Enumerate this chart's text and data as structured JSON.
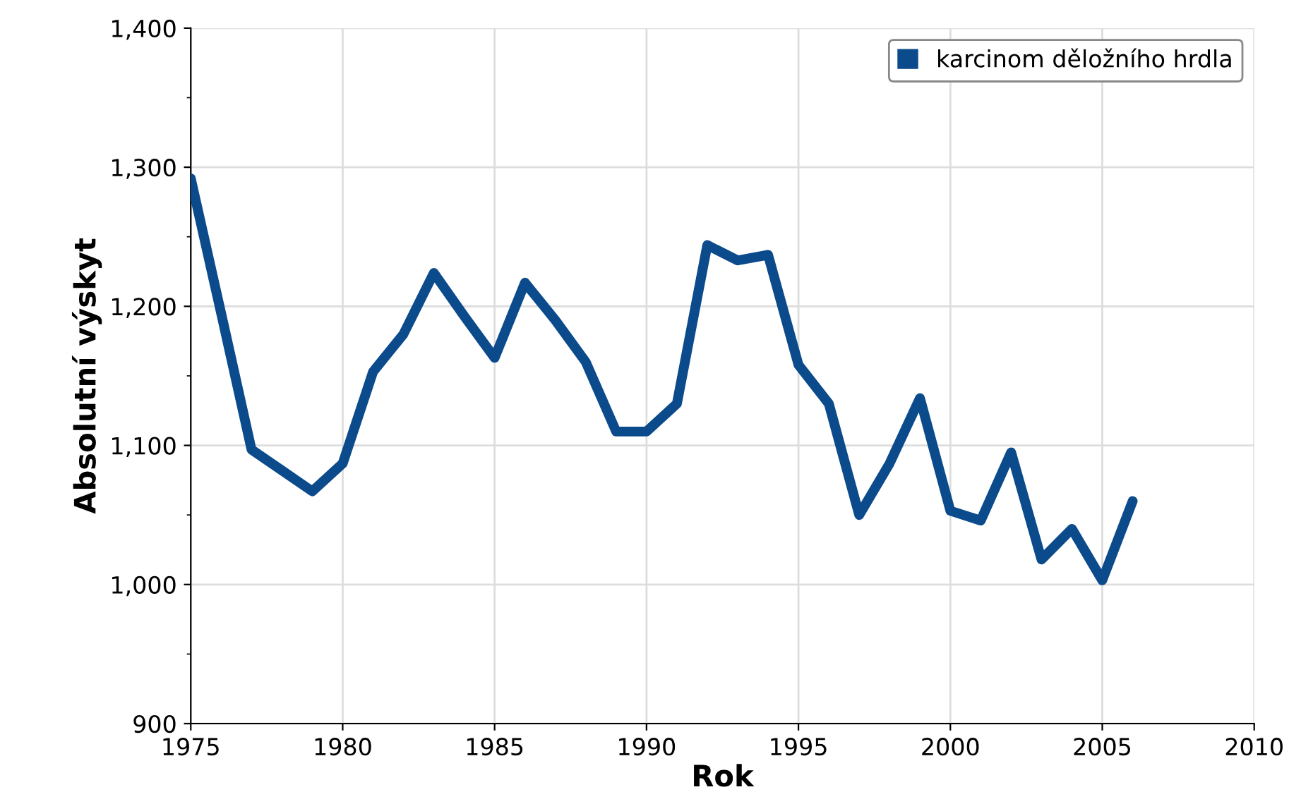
{
  "chart_data": {
    "type": "line",
    "xlabel": "Rok",
    "ylabel": "Absolutní výskyt",
    "x": [
      1975,
      1976,
      1977,
      1978,
      1979,
      1980,
      1981,
      1982,
      1983,
      1984,
      1985,
      1986,
      1987,
      1988,
      1989,
      1990,
      1991,
      1992,
      1993,
      1994,
      1995,
      1996,
      1997,
      1998,
      1999,
      2000,
      2001,
      2002,
      2003,
      2004,
      2005,
      2006
    ],
    "series": [
      {
        "name": "karcinom děložního hrdla",
        "color": "#0b4a8b",
        "values": [
          1292,
          1195,
          1097,
          1082,
          1067,
          1087,
          1153,
          1180,
          1224,
          1193,
          1163,
          1217,
          1190,
          1160,
          1110,
          1110,
          1130,
          1244,
          1233,
          1237,
          1158,
          1130,
          1050,
          1087,
          1134,
          1053,
          1046,
          1095,
          1018,
          1040,
          1003,
          1060
        ]
      }
    ],
    "xlim": [
      1975,
      2010
    ],
    "xticks": [
      1975,
      1980,
      1985,
      1990,
      1995,
      2000,
      2005,
      2010
    ],
    "ylim": [
      900,
      1400
    ],
    "yticks": [
      {
        "value": 900,
        "label": "900"
      },
      {
        "value": 1000,
        "label": "1,000"
      },
      {
        "value": 1100,
        "label": "1,100"
      },
      {
        "value": 1200,
        "label": "1,200"
      },
      {
        "value": 1300,
        "label": "1,300"
      },
      {
        "value": 1400,
        "label": "1,400"
      }
    ],
    "grid": true,
    "legend": "top right",
    "marker": "none",
    "line_style": "solid"
  }
}
